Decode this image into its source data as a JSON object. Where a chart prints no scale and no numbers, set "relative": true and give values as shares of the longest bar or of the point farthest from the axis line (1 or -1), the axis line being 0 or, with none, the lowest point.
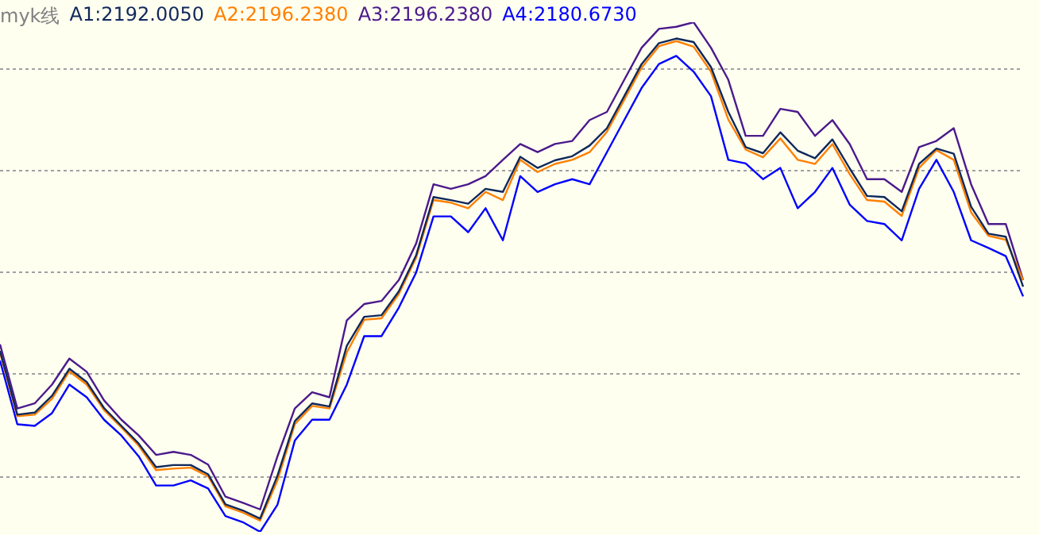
{
  "chart_data": {
    "type": "line",
    "title": "myk线",
    "relative": true,
    "grid": "y",
    "legend": "top left",
    "marker": "none",
    "line_style": "solid",
    "categories": [
      null,
      null,
      null,
      null,
      null,
      null,
      null,
      null,
      null,
      null,
      null,
      null,
      null,
      null,
      null,
      null,
      null,
      null,
      null,
      null,
      null,
      null,
      null,
      null,
      null,
      null,
      null,
      null,
      null,
      null,
      null,
      null,
      null,
      null,
      null,
      null,
      null,
      null,
      null,
      null,
      null,
      null,
      null,
      null,
      null,
      null,
      null,
      null,
      null,
      null,
      null,
      null,
      null,
      null,
      null,
      null,
      null,
      null,
      null,
      null
    ],
    "series": [
      {
        "name": "A1:2192.0050",
        "color": "#10285a",
        "values": [
          0.355,
          0.23,
          0.234,
          0.267,
          0.32,
          0.294,
          0.243,
          0.208,
          0.173,
          0.127,
          0.131,
          0.131,
          0.113,
          0.054,
          0.042,
          0.026,
          0.11,
          0.217,
          0.252,
          0.246,
          0.365,
          0.422,
          0.425,
          0.472,
          0.543,
          0.657,
          0.651,
          0.644,
          0.673,
          0.667,
          0.736,
          0.714,
          0.729,
          0.737,
          0.758,
          0.792,
          0.855,
          0.918,
          0.959,
          0.968,
          0.961,
          0.912,
          0.824,
          0.755,
          0.743,
          0.784,
          0.748,
          0.733,
          0.77,
          0.713,
          0.659,
          0.657,
          0.629,
          0.722,
          0.752,
          0.742,
          0.638,
          0.585,
          0.579,
          0.481
        ]
      },
      {
        "name": "A2:2196.2380",
        "color": "#ff8000",
        "values": [
          0.352,
          0.227,
          0.23,
          0.261,
          0.315,
          0.289,
          0.239,
          0.205,
          0.169,
          0.121,
          0.124,
          0.126,
          0.109,
          0.05,
          0.038,
          0.022,
          0.101,
          0.211,
          0.247,
          0.242,
          0.352,
          0.416,
          0.419,
          0.467,
          0.538,
          0.651,
          0.646,
          0.635,
          0.667,
          0.651,
          0.73,
          0.706,
          0.722,
          0.73,
          0.745,
          0.785,
          0.848,
          0.911,
          0.953,
          0.963,
          0.952,
          0.903,
          0.809,
          0.75,
          0.735,
          0.772,
          0.73,
          0.722,
          0.761,
          0.702,
          0.651,
          0.648,
          0.62,
          0.714,
          0.749,
          0.73,
          0.627,
          0.581,
          0.573,
          0.494
        ]
      },
      {
        "name": "A3:2196.2380",
        "color": "#4b1a8c",
        "values": [
          0.368,
          0.242,
          0.252,
          0.289,
          0.34,
          0.314,
          0.258,
          0.22,
          0.189,
          0.151,
          0.157,
          0.151,
          0.132,
          0.069,
          0.057,
          0.044,
          0.148,
          0.242,
          0.274,
          0.264,
          0.415,
          0.447,
          0.453,
          0.494,
          0.566,
          0.682,
          0.673,
          0.682,
          0.698,
          0.73,
          0.761,
          0.745,
          0.761,
          0.767,
          0.808,
          0.824,
          0.887,
          0.95,
          0.987,
          0.991,
          1,
          0.95,
          0.887,
          0.777,
          0.777,
          0.83,
          0.824,
          0.777,
          0.808,
          0.761,
          0.692,
          0.692,
          0.667,
          0.755,
          0.767,
          0.792,
          0.682,
          0.604,
          0.604,
          0.494
        ]
      },
      {
        "name": "A4:2180.6730",
        "color": "#0000ff",
        "values": [
          0.336,
          0.211,
          0.208,
          0.233,
          0.289,
          0.264,
          0.22,
          0.189,
          0.148,
          0.091,
          0.091,
          0.101,
          0.085,
          0.031,
          0.019,
          0,
          0.053,
          0.179,
          0.22,
          0.22,
          0.289,
          0.384,
          0.384,
          0.44,
          0.509,
          0.619,
          0.619,
          0.588,
          0.635,
          0.572,
          0.698,
          0.667,
          0.682,
          0.692,
          0.682,
          0.745,
          0.808,
          0.871,
          0.918,
          0.934,
          0.903,
          0.855,
          0.73,
          0.723,
          0.692,
          0.714,
          0.635,
          0.667,
          0.714,
          0.642,
          0.61,
          0.604,
          0.572,
          0.673,
          0.73,
          0.667,
          0.572,
          0.557,
          0.541,
          0.462
        ]
      }
    ]
  }
}
